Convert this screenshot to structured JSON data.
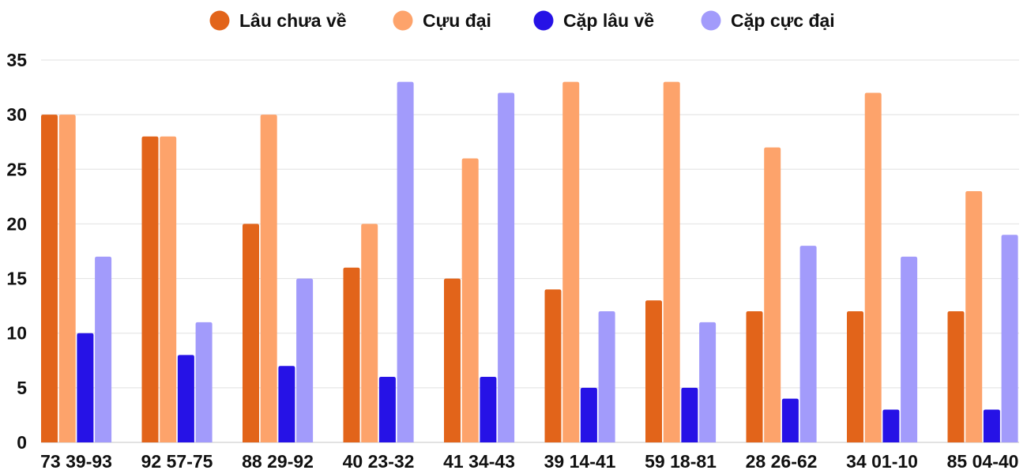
{
  "chart_data": {
    "type": "bar",
    "title": "",
    "xlabel": "",
    "ylabel": "",
    "ylim": [
      0,
      35
    ],
    "yticks": [
      0,
      5,
      10,
      15,
      20,
      25,
      30,
      35
    ],
    "grid": true,
    "legend_position": "top-center",
    "categories": [
      "73 39-93",
      "92 57-75",
      "88 29-92",
      "40 23-32",
      "41 34-43",
      "39 14-41",
      "59 18-81",
      "28 26-62",
      "34 01-10",
      "85 04-40"
    ],
    "series": [
      {
        "name": "Lâu chưa về",
        "color": "#e2641a",
        "values": [
          30,
          28,
          20,
          16,
          15,
          14,
          13,
          12,
          12,
          12
        ]
      },
      {
        "name": "Cựu đại",
        "color": "#fda36b",
        "values": [
          30,
          28,
          30,
          20,
          26,
          33,
          33,
          27,
          32,
          23
        ]
      },
      {
        "name": "Cặp lâu về",
        "color": "#2612e6",
        "values": [
          10,
          8,
          7,
          6,
          6,
          5,
          5,
          4,
          3,
          3
        ]
      },
      {
        "name": "Cặp cực đại",
        "color": "#a29bfb",
        "values": [
          17,
          11,
          15,
          33,
          32,
          12,
          11,
          18,
          17,
          19
        ]
      }
    ]
  }
}
